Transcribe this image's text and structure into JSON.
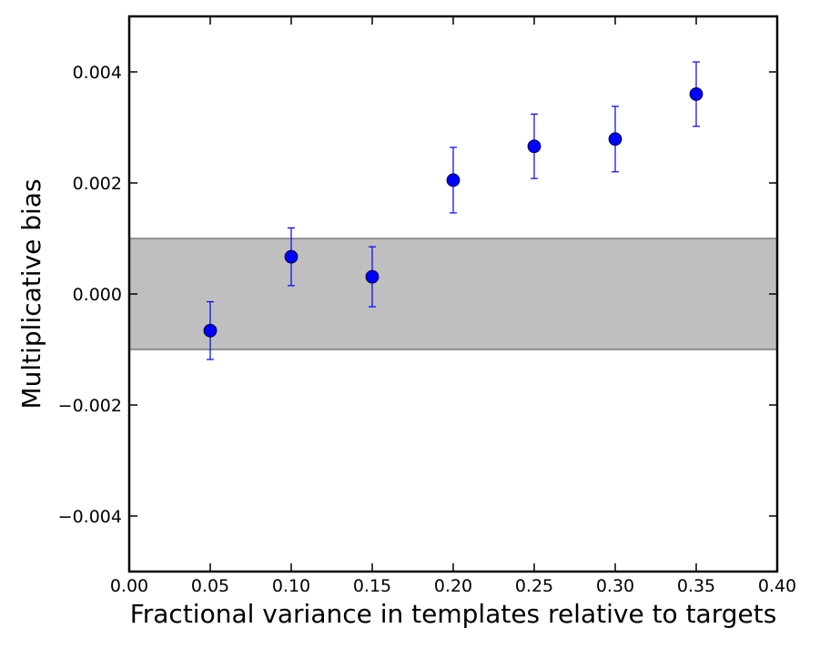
{
  "chart_data": {
    "type": "scatter",
    "title": "",
    "xlabel": "Fractional variance in templates relative to targets",
    "ylabel": "Multiplicative bias",
    "xlim": [
      0.0,
      0.4
    ],
    "ylim": [
      -0.005,
      0.005
    ],
    "x_ticks": [
      0.0,
      0.05,
      0.1,
      0.15,
      0.2,
      0.25,
      0.3,
      0.35,
      0.4
    ],
    "x_tick_labels": [
      "0.00",
      "0.05",
      "0.10",
      "0.15",
      "0.20",
      "0.25",
      "0.30",
      "0.35",
      "0.40"
    ],
    "y_ticks": [
      -0.004,
      -0.002,
      0.0,
      0.002,
      0.004
    ],
    "y_tick_labels": [
      "−0.004",
      "−0.002",
      "0.000",
      "0.002",
      "0.004"
    ],
    "grid": false,
    "legend": null,
    "band": {
      "y_low": -0.001,
      "y_high": 0.001,
      "fill": "#bfbfbf",
      "edge": "#666666"
    },
    "series": [
      {
        "color": "#0000ff",
        "x": [
          0.05,
          0.1,
          0.15,
          0.2,
          0.25,
          0.3,
          0.35
        ],
        "y": [
          -0.00066,
          0.00067,
          0.00031,
          0.00205,
          0.00266,
          0.00279,
          0.0036
        ],
        "yerr": [
          0.00052,
          0.00052,
          0.00054,
          0.00059,
          0.00058,
          0.00059,
          0.00058
        ]
      }
    ]
  }
}
